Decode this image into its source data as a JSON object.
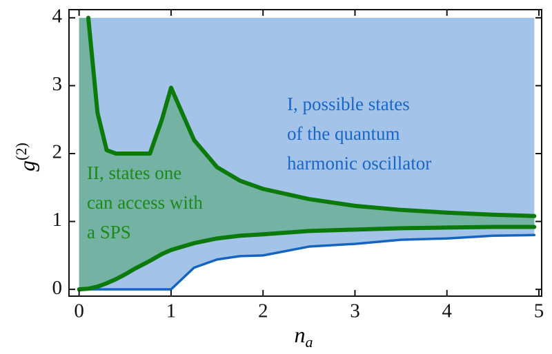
{
  "chart_data": {
    "type": "line",
    "xlabel": {
      "base": "n",
      "sub": "a"
    },
    "ylabel": {
      "base": "g",
      "sup": "(2)"
    },
    "x": [
      0,
      0.1,
      0.2,
      0.3,
      0.4,
      0.5,
      0.6,
      0.77,
      0.9,
      1.0,
      1.25,
      1.5,
      1.75,
      2,
      2.5,
      3,
      3.5,
      4,
      4.5,
      4.95
    ],
    "series": [
      {
        "color": "#1565c0",
        "fill": "#a3c4e8",
        "values": [
          0,
          0,
          0,
          0,
          0,
          0,
          0,
          0,
          0,
          0,
          0.32,
          0.44,
          0.49,
          0.5,
          0.63,
          0.67,
          0.73,
          0.75,
          0.79,
          0.8
        ]
      },
      {
        "color": "#0b7a0b",
        "fill": "#74b2a3",
        "values": [
          null,
          4,
          2.6,
          2.05,
          2.0,
          2.0,
          2.0,
          2.0,
          2.5,
          2.97,
          2.2,
          1.8,
          1.6,
          1.48,
          1.33,
          1.23,
          1.17,
          1.13,
          1.1,
          1.08
        ]
      },
      {
        "color": "#0b7a0b",
        "values": [
          0,
          0.01,
          0.04,
          0.09,
          0.15,
          0.22,
          0.3,
          0.42,
          0.52,
          0.58,
          0.68,
          0.75,
          0.79,
          0.81,
          0.86,
          0.88,
          0.9,
          0.91,
          0.92,
          0.92
        ]
      }
    ],
    "fill_top": 4,
    "annotations": [
      {
        "lines": [
          "I, possible states",
          "of the quantum",
          "harmonic oscillator"
        ],
        "color": "#1a66c8"
      },
      {
        "lines": [
          "II, states one",
          "can access with",
          "a SPS"
        ],
        "color": "#1b8a1b"
      }
    ],
    "xlim": [
      -0.11,
      5.03
    ],
    "ylim": [
      -0.1,
      4.12
    ],
    "xticks": [
      0,
      1,
      2,
      3,
      4,
      5
    ],
    "yticks": [
      0,
      1,
      2,
      3,
      4
    ]
  }
}
